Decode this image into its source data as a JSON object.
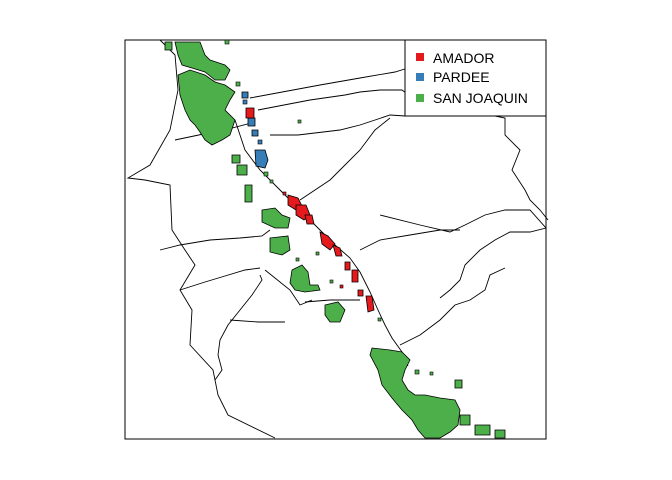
{
  "map": {
    "legend": {
      "items": [
        {
          "label": "AMADOR",
          "color": "#E41A1C"
        },
        {
          "label": "PARDEE",
          "color": "#377EB8"
        },
        {
          "label": "SAN JOAQUIN",
          "color": "#4DAF4A"
        }
      ]
    },
    "colors": {
      "frame": "#000000",
      "boundaries": "#000000",
      "background": "#ffffff"
    }
  }
}
